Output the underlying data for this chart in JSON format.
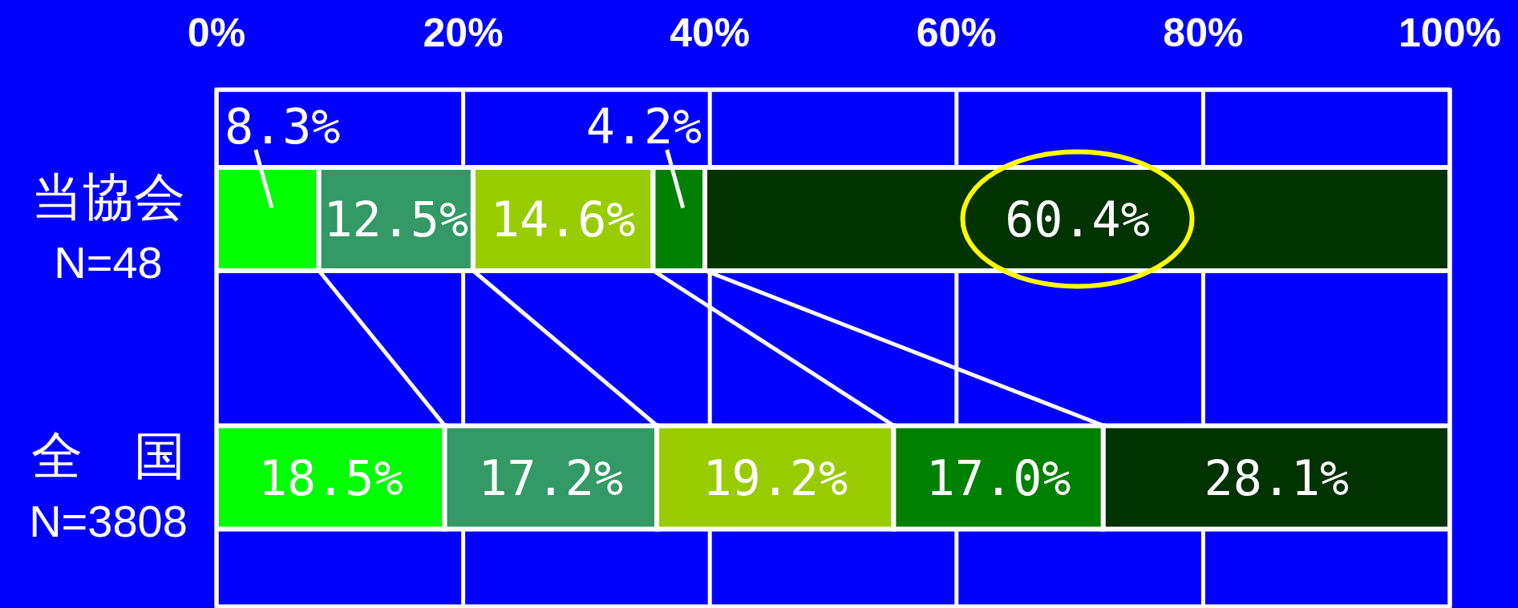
{
  "chart_data": {
    "type": "bar",
    "orientation": "horizontal",
    "stacked": true,
    "categories": [
      "当協会\nN=48",
      "全　国\nN=3808"
    ],
    "series": [
      {
        "color": "#00ff00",
        "values": [
          8.3,
          18.5
        ],
        "value_labels": [
          "8.3%",
          "18.5%"
        ]
      },
      {
        "color": "#339966",
        "values": [
          12.5,
          17.2
        ],
        "value_labels": [
          "12.5%",
          "17.2%"
        ]
      },
      {
        "color": "#99cc00",
        "values": [
          14.6,
          19.2
        ],
        "value_labels": [
          "14.6%",
          "19.2%"
        ]
      },
      {
        "color": "#008000",
        "values": [
          4.2,
          17.0
        ],
        "value_labels": [
          "4.2%",
          "17.0%"
        ]
      },
      {
        "color": "#003300",
        "values": [
          60.4,
          28.1
        ],
        "value_labels": [
          "60.4%",
          "28.1%"
        ]
      }
    ],
    "xlim": [
      0,
      100
    ],
    "xticks": [
      {
        "value": 0,
        "label": "0%"
      },
      {
        "value": 20,
        "label": "20%"
      },
      {
        "value": 40,
        "label": "40%"
      },
      {
        "value": 60,
        "label": "60%"
      },
      {
        "value": 80,
        "label": "80%"
      },
      {
        "value": 100,
        "label": "100%"
      }
    ],
    "grid": "x"
  }
}
